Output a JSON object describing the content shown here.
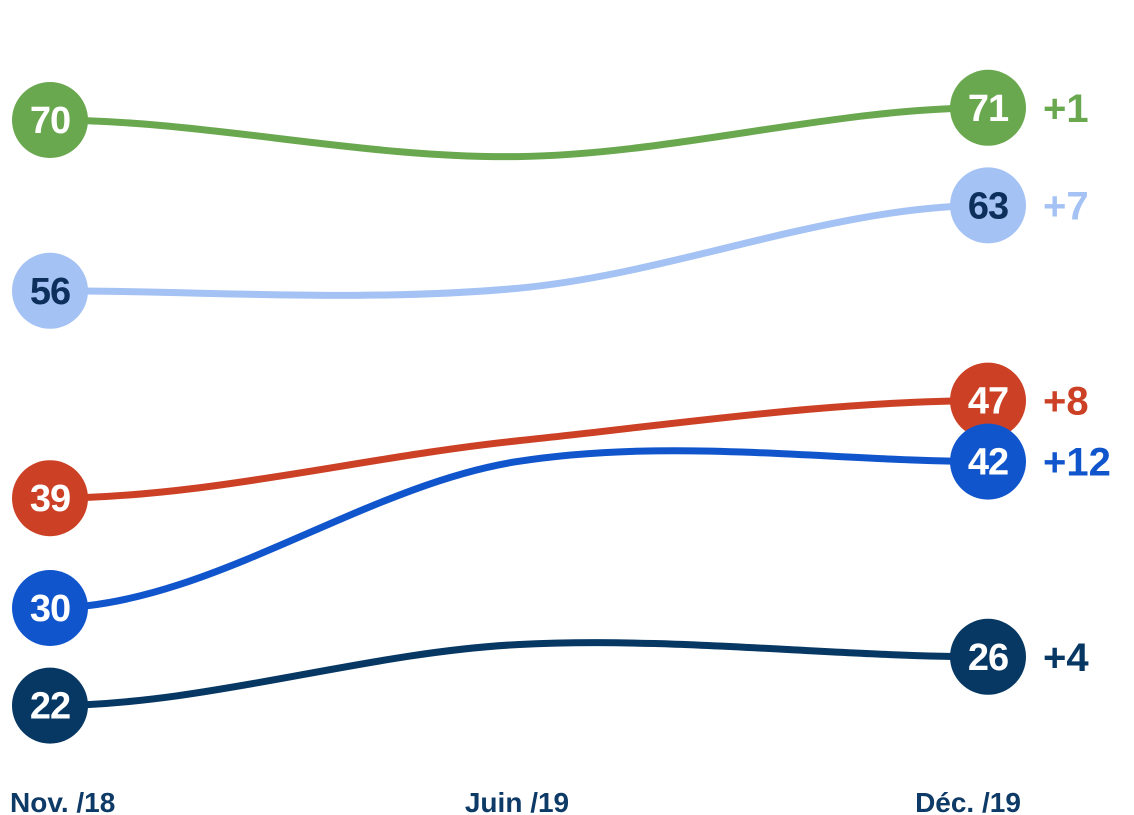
{
  "chart_data": {
    "type": "line",
    "x": [
      "Nov. /18",
      "Juin /19",
      "Déc. /19"
    ],
    "ylim": [
      15,
      75
    ],
    "grid": false,
    "legend": "none",
    "series": [
      {
        "values": [
          70,
          67,
          71
        ],
        "start_label": "70",
        "end_label": "71",
        "delta": "+1",
        "color": "#6aa84f",
        "text_color": "#ffffff",
        "delta_color": "#6aa84f"
      },
      {
        "values": [
          56,
          56.2,
          63
        ],
        "start_label": "56",
        "end_label": "63",
        "delta": "+7",
        "color": "#a4c2f4",
        "text_color": "#0d2f5c",
        "delta_color": "#a4c2f4"
      },
      {
        "values": [
          39,
          43.7,
          47
        ],
        "start_label": "39",
        "end_label": "47",
        "delta": "+8",
        "color": "#cc4125",
        "text_color": "#ffffff",
        "delta_color": "#cc4125"
      },
      {
        "values": [
          30,
          42,
          42
        ],
        "start_label": "30",
        "end_label": "42",
        "delta": "+12",
        "color": "#1155cc",
        "text_color": "#ffffff",
        "delta_color": "#1155cc"
      },
      {
        "values": [
          22,
          27,
          26
        ],
        "start_label": "22",
        "end_label": "26",
        "delta": "+4",
        "color": "#073763",
        "text_color": "#ffffff",
        "delta_color": "#073763"
      }
    ]
  }
}
